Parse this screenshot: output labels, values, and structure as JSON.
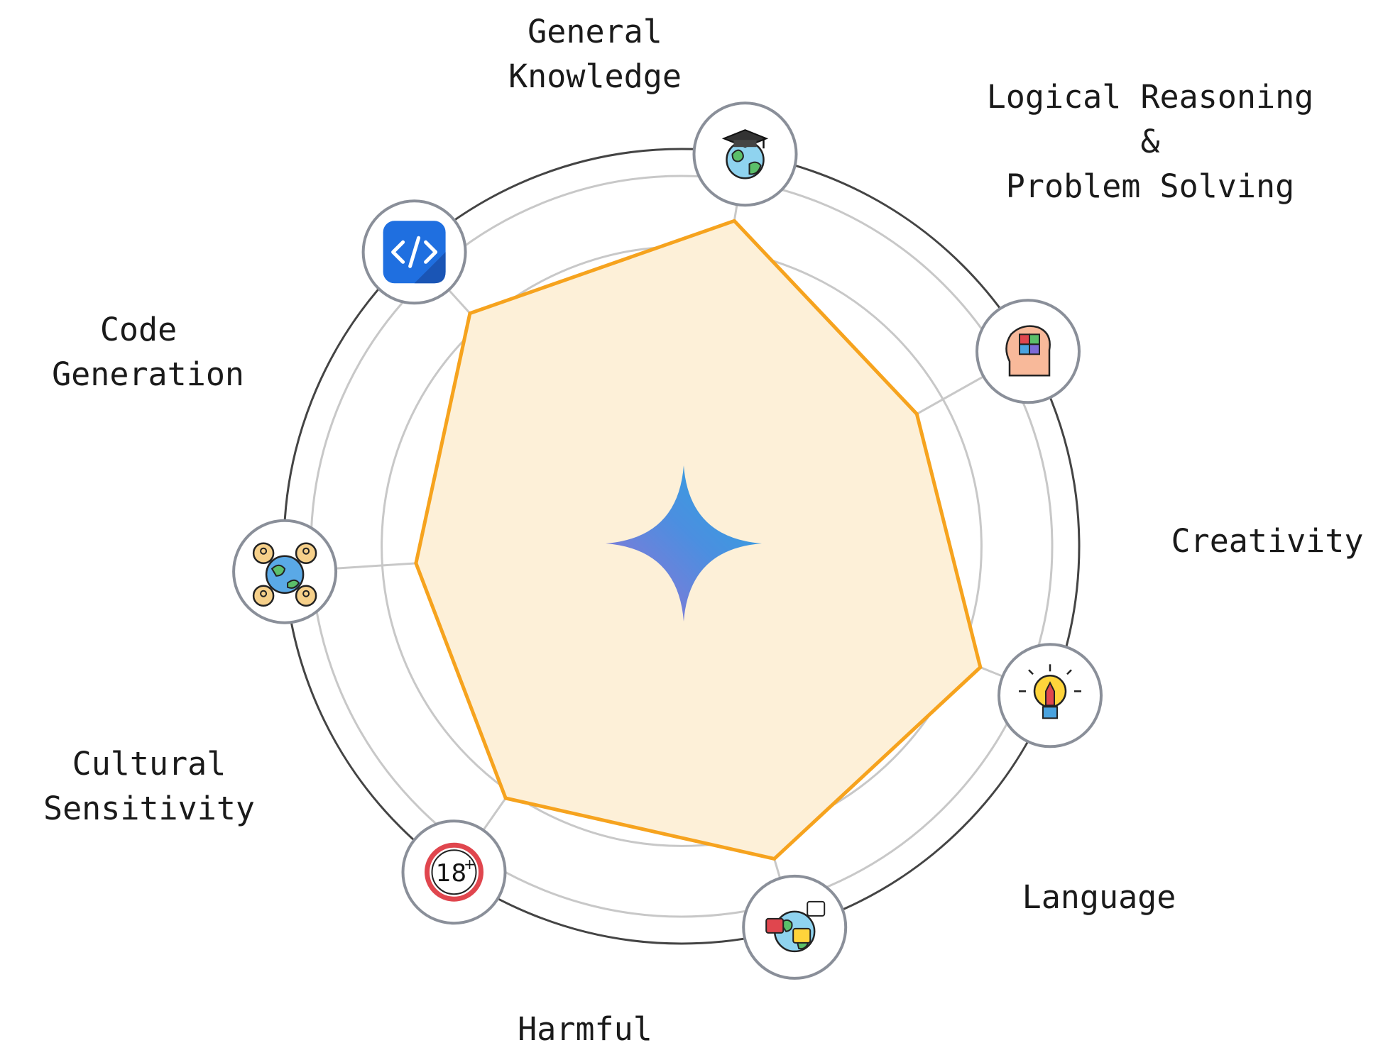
{
  "chart_data": {
    "type": "radar",
    "categories": [
      {
        "lines": [
          "General",
          "Knowledge"
        ],
        "icon": "graduation-globe-icon"
      },
      {
        "lines": [
          "Logical Reasoning",
          "&",
          "Problem Solving"
        ],
        "icon": "puzzle-head-icon"
      },
      {
        "lines": [
          "Creativity"
        ],
        "icon": "lightbulb-pencil-icon"
      },
      {
        "lines": [
          "Language"
        ],
        "icon": "translation-globe-icon"
      },
      {
        "lines": [
          "Harmful"
        ],
        "icon": "age-18-plus-icon"
      },
      {
        "lines": [
          "Cultural",
          "Sensitivity"
        ],
        "icon": "people-globe-icon"
      },
      {
        "lines": [
          "Code",
          " Generation"
        ],
        "icon": "code-brackets-icon"
      }
    ],
    "series": [
      {
        "values": [
          0.88,
          0.72,
          0.86,
          0.87,
          0.82,
          0.71,
          0.84
        ],
        "color": "#f6a31e",
        "fill": "#fdf0d8"
      }
    ],
    "rlim": [
      0,
      1
    ],
    "rings": 5,
    "center_icon": "sparkle-star-icon",
    "grid": true
  }
}
